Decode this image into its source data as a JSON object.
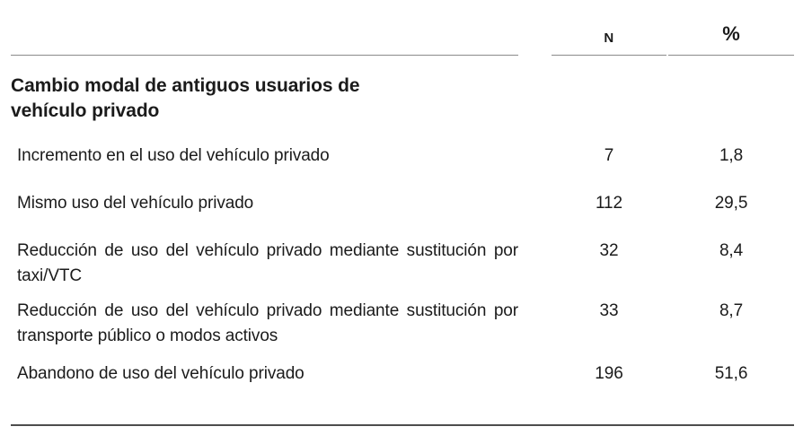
{
  "header": {
    "n_label": "N",
    "pct_label": "%"
  },
  "section": {
    "title": "Cambio modal de antiguos usuarios de vehículo privado"
  },
  "rows": [
    {
      "label": "Incremento en el uso del vehículo privado",
      "n": "7",
      "pct": "1,8"
    },
    {
      "label": "Mismo uso del vehículo privado",
      "n": "112",
      "pct": "29,5"
    },
    {
      "label": "Reducción de uso del vehículo privado mediante sustitución por taxi/VTC",
      "n": "32",
      "pct": "8,4"
    },
    {
      "label": "Reducción de uso del vehículo privado mediante sustitución por transporte público o modos activos",
      "n": "33",
      "pct": "8,7"
    },
    {
      "label": "Abandono de uso del vehículo privado",
      "n": "196",
      "pct": "51,6"
    }
  ],
  "colors": {
    "text": "#1b1b1b",
    "header_rule": "#8a8a8a",
    "bottom_rule": "#4d4d4d",
    "background": "#ffffff"
  }
}
